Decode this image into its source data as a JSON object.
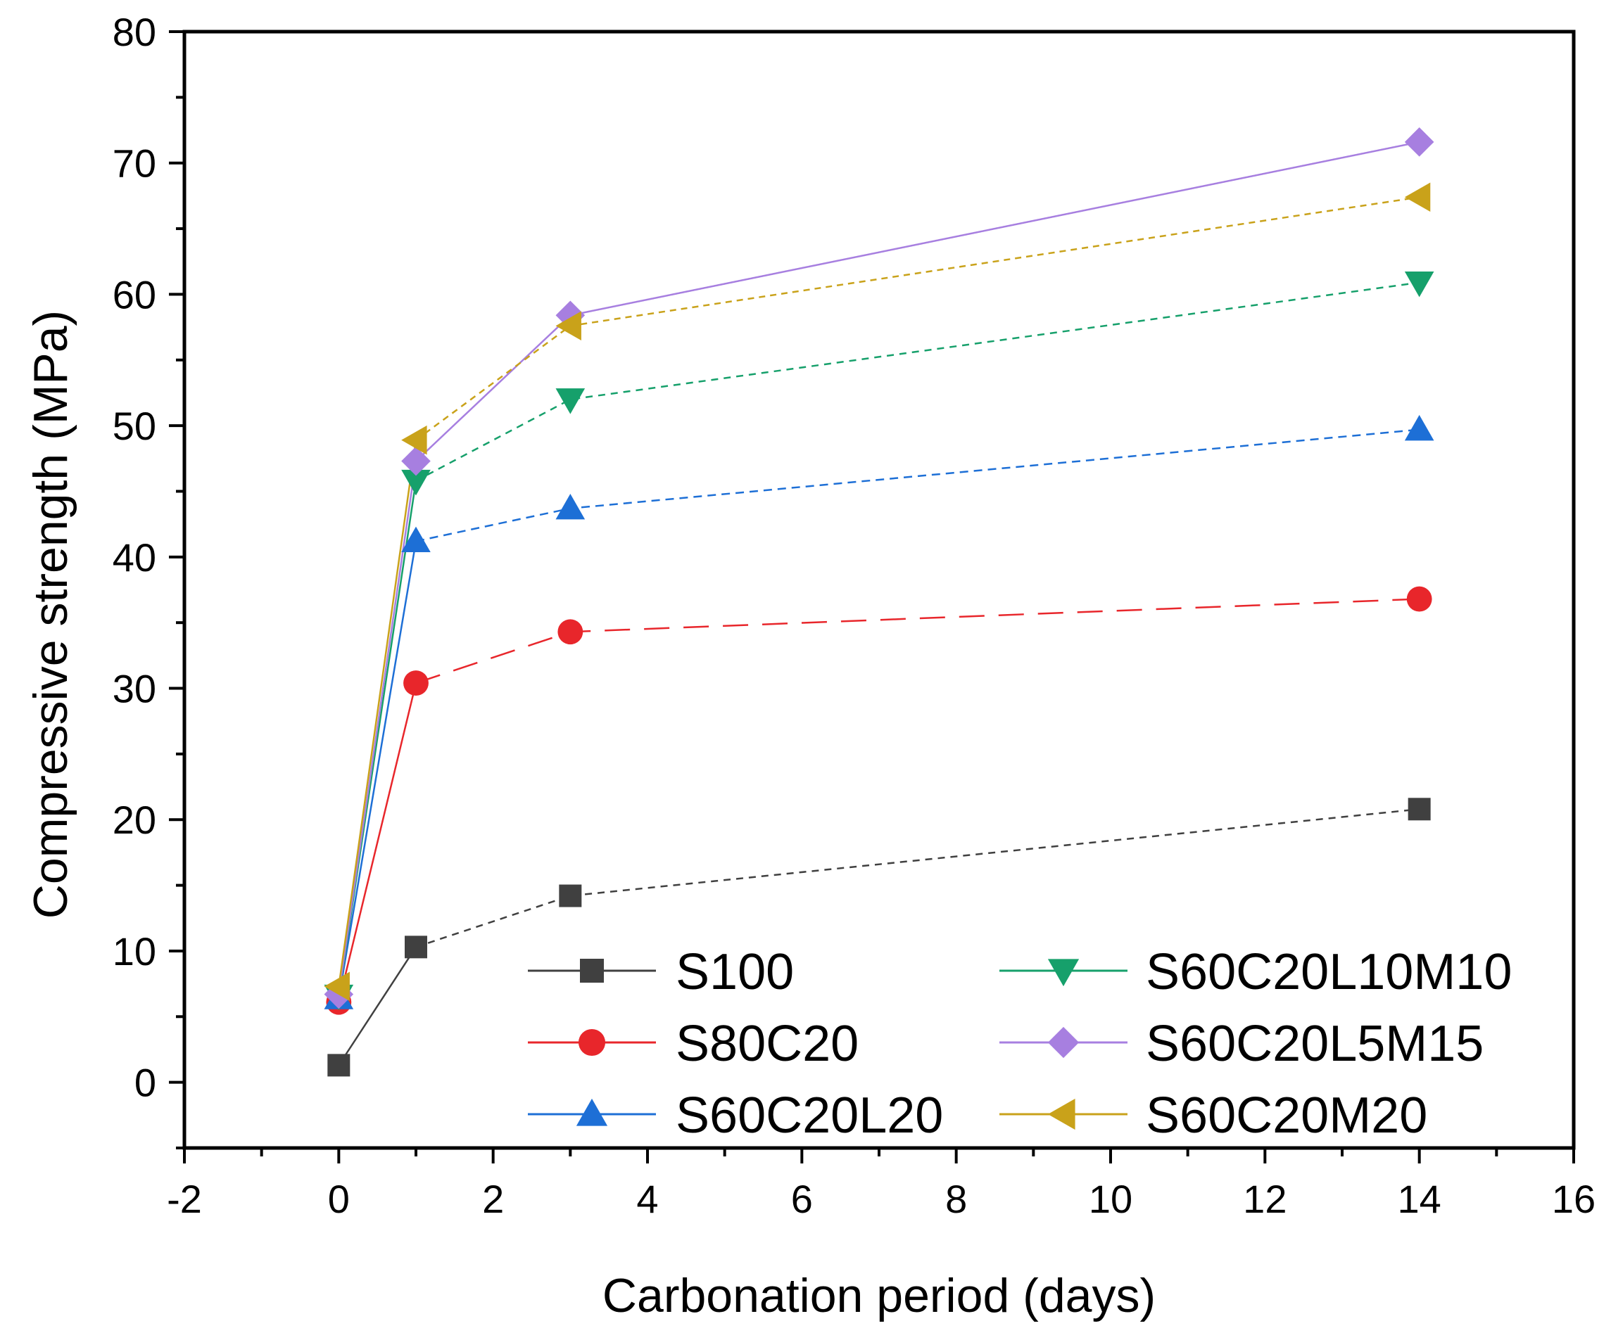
{
  "chart_data": {
    "type": "line",
    "title": "",
    "xlabel": "Carbonation period (days)",
    "ylabel": "Compressive strength (MPa)",
    "xlim": [
      -2,
      16
    ],
    "ylim": [
      -5,
      80
    ],
    "xticks": [
      -2,
      0,
      2,
      4,
      6,
      8,
      10,
      12,
      14,
      16
    ],
    "yticks": [
      0,
      10,
      20,
      30,
      40,
      50,
      60,
      70,
      80
    ],
    "xtick_labels": [
      "-2",
      "0",
      "2",
      "4",
      "6",
      "8",
      "10",
      "12",
      "14",
      "16"
    ],
    "ytick_labels": [
      "0",
      "10",
      "20",
      "30",
      "40",
      "50",
      "60",
      "70",
      "80"
    ],
    "grid": false,
    "legend_position": "bottom-right",
    "x": [
      0,
      1,
      3,
      14
    ],
    "series": [
      {
        "name": "S100",
        "values": [
          1.3,
          10.3,
          14.2,
          20.8
        ],
        "color": "#404040",
        "marker": "square"
      },
      {
        "name": "S80C20",
        "values": [
          6.1,
          30.4,
          34.3,
          36.8
        ],
        "color": "#e8262b",
        "marker": "circle"
      },
      {
        "name": "S60C20L20",
        "values": [
          6.4,
          41.2,
          43.7,
          49.7
        ],
        "color": "#1d6fd6",
        "marker": "triangle-up"
      },
      {
        "name": "S60C20L10M10",
        "values": [
          6.6,
          45.8,
          52.0,
          60.9
        ],
        "color": "#16a06b",
        "marker": "triangle-down"
      },
      {
        "name": "S60C20L5M15",
        "values": [
          6.7,
          47.3,
          58.4,
          71.6
        ],
        "color": "#a77fe0",
        "marker": "diamond"
      },
      {
        "name": "S60C20M20",
        "values": [
          7.3,
          48.9,
          57.6,
          67.4
        ],
        "color": "#c9a21a",
        "marker": "triangle-left"
      }
    ]
  }
}
